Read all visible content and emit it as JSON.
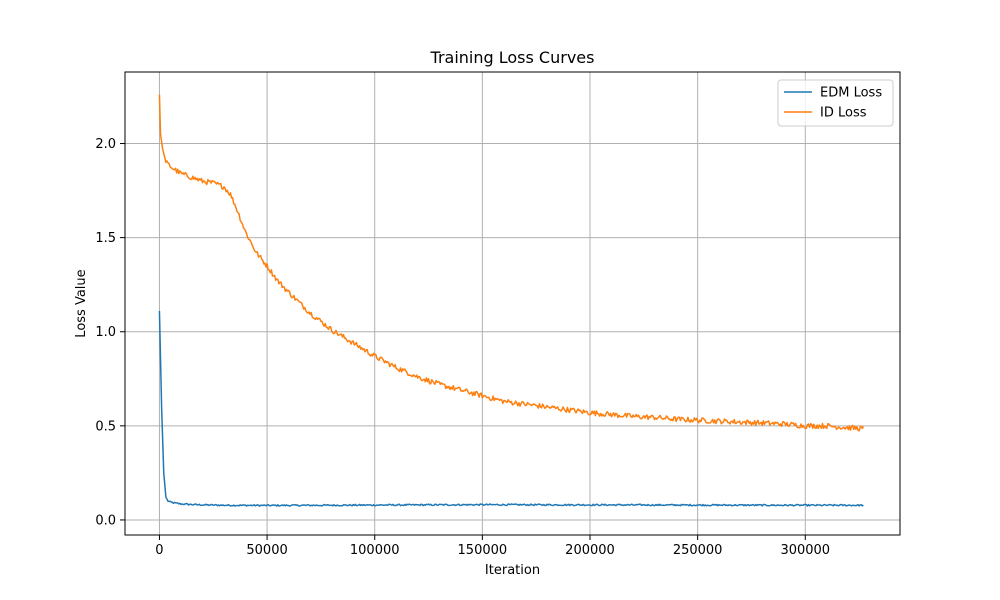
{
  "chart_data": {
    "type": "line",
    "title": "Training Loss Curves",
    "xlabel": "Iteration",
    "ylabel": "Loss Value",
    "xlim": [
      -16000,
      344000
    ],
    "ylim": [
      -0.08,
      2.38
    ],
    "xticks": [
      0,
      50000,
      100000,
      150000,
      200000,
      250000,
      300000
    ],
    "yticks": [
      0.0,
      0.5,
      1.0,
      1.5,
      2.0
    ],
    "xtick_labels": [
      "0",
      "50000",
      "100000",
      "150000",
      "200000",
      "250000",
      "300000"
    ],
    "ytick_labels": [
      "0.0",
      "0.5",
      "1.0",
      "1.5",
      "2.0"
    ],
    "grid": true,
    "legend_position": "top-right",
    "series": [
      {
        "name": "EDM Loss",
        "color": "#1f77b4",
        "x": [
          0,
          1000,
          2000,
          3000,
          4000,
          5000,
          7000,
          10000,
          15000,
          20000,
          30000,
          50000,
          80000,
          100000,
          150000,
          200000,
          250000,
          300000,
          327000
        ],
        "y": [
          1.11,
          0.6,
          0.25,
          0.12,
          0.1,
          0.095,
          0.09,
          0.085,
          0.082,
          0.08,
          0.078,
          0.077,
          0.078,
          0.079,
          0.081,
          0.08,
          0.079,
          0.078,
          0.078
        ],
        "noise": 0.004
      },
      {
        "name": "ID Loss",
        "color": "#ff7f0e",
        "x": [
          0,
          500,
          1500,
          3000,
          6000,
          10000,
          15000,
          20000,
          25000,
          30000,
          33000,
          36000,
          40000,
          45000,
          50000,
          55000,
          60000,
          70000,
          80000,
          90000,
          100000,
          110000,
          120000,
          130000,
          140000,
          150000,
          160000,
          170000,
          180000,
          190000,
          200000,
          210000,
          220000,
          230000,
          240000,
          250000,
          260000,
          270000,
          280000,
          290000,
          300000,
          310000,
          320000,
          327000
        ],
        "y": [
          2.26,
          2.05,
          1.97,
          1.9,
          1.87,
          1.84,
          1.82,
          1.8,
          1.79,
          1.77,
          1.73,
          1.65,
          1.53,
          1.42,
          1.35,
          1.27,
          1.21,
          1.1,
          1.01,
          0.94,
          0.87,
          0.81,
          0.76,
          0.72,
          0.69,
          0.66,
          0.63,
          0.615,
          0.6,
          0.585,
          0.57,
          0.56,
          0.55,
          0.545,
          0.535,
          0.53,
          0.525,
          0.52,
          0.515,
          0.51,
          0.5,
          0.5,
          0.49,
          0.485
        ],
        "noise": 0.014
      }
    ]
  }
}
